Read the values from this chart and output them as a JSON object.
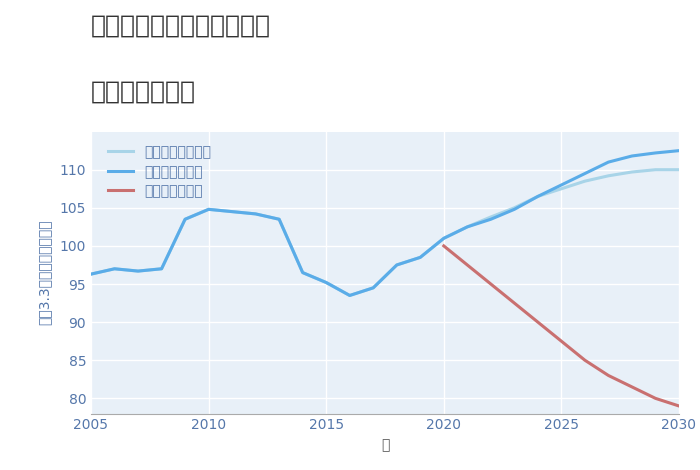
{
  "title_line1": "大阪府高槻市成合中の町の",
  "title_line2": "土地の価格推移",
  "xlabel": "年",
  "ylabel": "坪（3.3㎡）単価（万円）",
  "background_color": "#ffffff",
  "plot_bg_color": "#e8f0f8",
  "grid_color": "#ffffff",
  "good_scenario": {
    "label": "グッドシナリオ",
    "color": "#5aace8",
    "years": [
      2005,
      2006,
      2007,
      2008,
      2009,
      2010,
      2011,
      2012,
      2013,
      2014,
      2015,
      2016,
      2017,
      2018,
      2019,
      2020,
      2021,
      2022,
      2023,
      2024,
      2025,
      2026,
      2027,
      2028,
      2029,
      2030
    ],
    "values": [
      96.3,
      97.0,
      96.7,
      97.0,
      103.5,
      104.8,
      104.5,
      104.2,
      103.5,
      96.5,
      95.2,
      93.5,
      94.5,
      97.5,
      98.5,
      101.0,
      102.5,
      103.5,
      104.8,
      106.5,
      108.0,
      109.5,
      111.0,
      111.8,
      112.2,
      112.5
    ]
  },
  "bad_scenario": {
    "label": "バッドシナリオ",
    "color": "#c97070",
    "years": [
      2020,
      2021,
      2022,
      2023,
      2024,
      2025,
      2026,
      2027,
      2028,
      2029,
      2030
    ],
    "values": [
      100.0,
      97.5,
      95.0,
      92.5,
      90.0,
      87.5,
      85.0,
      83.0,
      81.5,
      80.0,
      79.0
    ]
  },
  "normal_scenario": {
    "label": "ノーマルシナリオ",
    "color": "#a8d4e8",
    "years": [
      2005,
      2006,
      2007,
      2008,
      2009,
      2010,
      2011,
      2012,
      2013,
      2014,
      2015,
      2016,
      2017,
      2018,
      2019,
      2020,
      2021,
      2022,
      2023,
      2024,
      2025,
      2026,
      2027,
      2028,
      2029,
      2030
    ],
    "values": [
      96.3,
      97.0,
      96.7,
      97.0,
      103.5,
      104.8,
      104.5,
      104.2,
      103.5,
      96.5,
      95.2,
      93.5,
      94.5,
      97.5,
      98.5,
      101.0,
      102.5,
      103.8,
      105.0,
      106.5,
      107.5,
      108.5,
      109.2,
      109.7,
      110.0,
      110.0
    ]
  },
  "xlim": [
    2005,
    2030
  ],
  "ylim": [
    78,
    115
  ],
  "yticks": [
    80,
    85,
    90,
    95,
    100,
    105,
    110
  ],
  "xticks": [
    2005,
    2010,
    2015,
    2020,
    2025,
    2030
  ],
  "title_fontsize": 18,
  "label_fontsize": 10,
  "tick_fontsize": 10,
  "legend_fontsize": 10,
  "ylabel_color": "#5577aa",
  "tick_color": "#5577aa",
  "xlabel_color": "#555555"
}
